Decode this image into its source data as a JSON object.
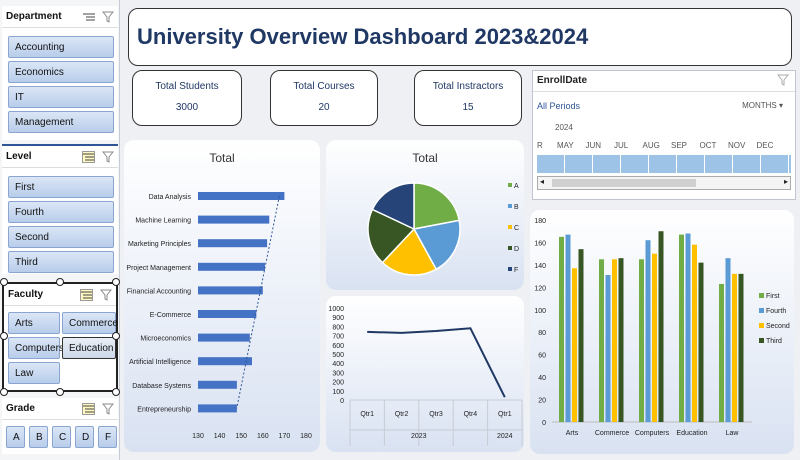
{
  "slicers": {
    "department": {
      "title": "Department",
      "items": [
        "Accounting",
        "Economics",
        "IT",
        "Management"
      ]
    },
    "level": {
      "title": "Level",
      "items": [
        "First",
        "Fourth",
        "Second",
        "Third"
      ]
    },
    "faculty": {
      "title": "Faculty",
      "items": [
        "Arts",
        "Commerce",
        "Computers",
        "Education",
        "Law"
      ]
    },
    "grade": {
      "title": "Grade",
      "items": [
        "A",
        "B",
        "C",
        "D",
        "F"
      ]
    }
  },
  "dashboard": {
    "title": "University Overview Dashboard 2023&2024"
  },
  "kpis": [
    {
      "label": "Total Students",
      "value": "3000"
    },
    {
      "label": "Total Courses",
      "value": "20"
    },
    {
      "label": "Total Instractors",
      "value": "15"
    }
  ],
  "timeline": {
    "title": "EnrollDate",
    "period": "All Periods",
    "unit": "MONTHS",
    "year": "2024",
    "lead_month": "R",
    "months": [
      "MAY",
      "JUN",
      "JUL",
      "AUG",
      "SEP",
      "OCT",
      "NOV",
      "DEC"
    ]
  },
  "chart_data": [
    {
      "type": "bar",
      "title": "Total",
      "orientation": "horizontal",
      "categories": [
        "Data Analysis",
        "Machine Learning",
        "Marketing Principles",
        "Project Management",
        "Financial Accounting",
        "E-Commerce",
        "Microeconomics",
        "Artificial Intelligence",
        "Database Systems",
        "Entrepreneurship"
      ],
      "values": [
        170,
        163,
        162,
        161,
        160,
        157,
        154,
        155,
        148,
        148
      ],
      "xlim": [
        130,
        180
      ],
      "xticks": [
        "130",
        "140",
        "150",
        "160",
        "170",
        "180"
      ],
      "trendline": true,
      "color": "#4472c4"
    },
    {
      "type": "pie",
      "title": "Total",
      "categories": [
        "A",
        "B",
        "C",
        "D",
        "F"
      ],
      "values": [
        22,
        20,
        20,
        20,
        18
      ],
      "colors": [
        "#70ad47",
        "#5b9bd5",
        "#ffc000",
        "#375623",
        "#264478"
      ]
    },
    {
      "type": "line",
      "title": "",
      "categories": [
        "Qtr1",
        "Qtr2",
        "Qtr3",
        "Qtr4",
        "Qtr1"
      ],
      "groups": [
        {
          "label": "2023",
          "span": 4
        },
        {
          "label": "2024",
          "span": 1
        }
      ],
      "values": [
        740,
        730,
        750,
        780,
        30
      ],
      "ylim": [
        0,
        1000
      ],
      "yticks": [
        "0",
        "100",
        "200",
        "300",
        "400",
        "500",
        "600",
        "700",
        "800",
        "900",
        "1000"
      ],
      "color": "#1f3864"
    },
    {
      "type": "bar",
      "title": "",
      "categories": [
        "Arts",
        "Commerce",
        "Computers",
        "Education",
        "Law"
      ],
      "series": [
        {
          "name": "First",
          "color": "#70ad47",
          "values": [
            165,
            145,
            145,
            167,
            123
          ]
        },
        {
          "name": "Fourth",
          "color": "#5b9bd5",
          "values": [
            167,
            131,
            162,
            168,
            146
          ]
        },
        {
          "name": "Second",
          "color": "#ffc000",
          "values": [
            137,
            145,
            150,
            158,
            132
          ]
        },
        {
          "name": "Third",
          "color": "#375623",
          "values": [
            154,
            146,
            170,
            142,
            132
          ]
        }
      ],
      "ylim": [
        0,
        180
      ],
      "yticks": [
        "0",
        "20",
        "40",
        "60",
        "80",
        "100",
        "120",
        "140",
        "160",
        "180"
      ]
    }
  ]
}
